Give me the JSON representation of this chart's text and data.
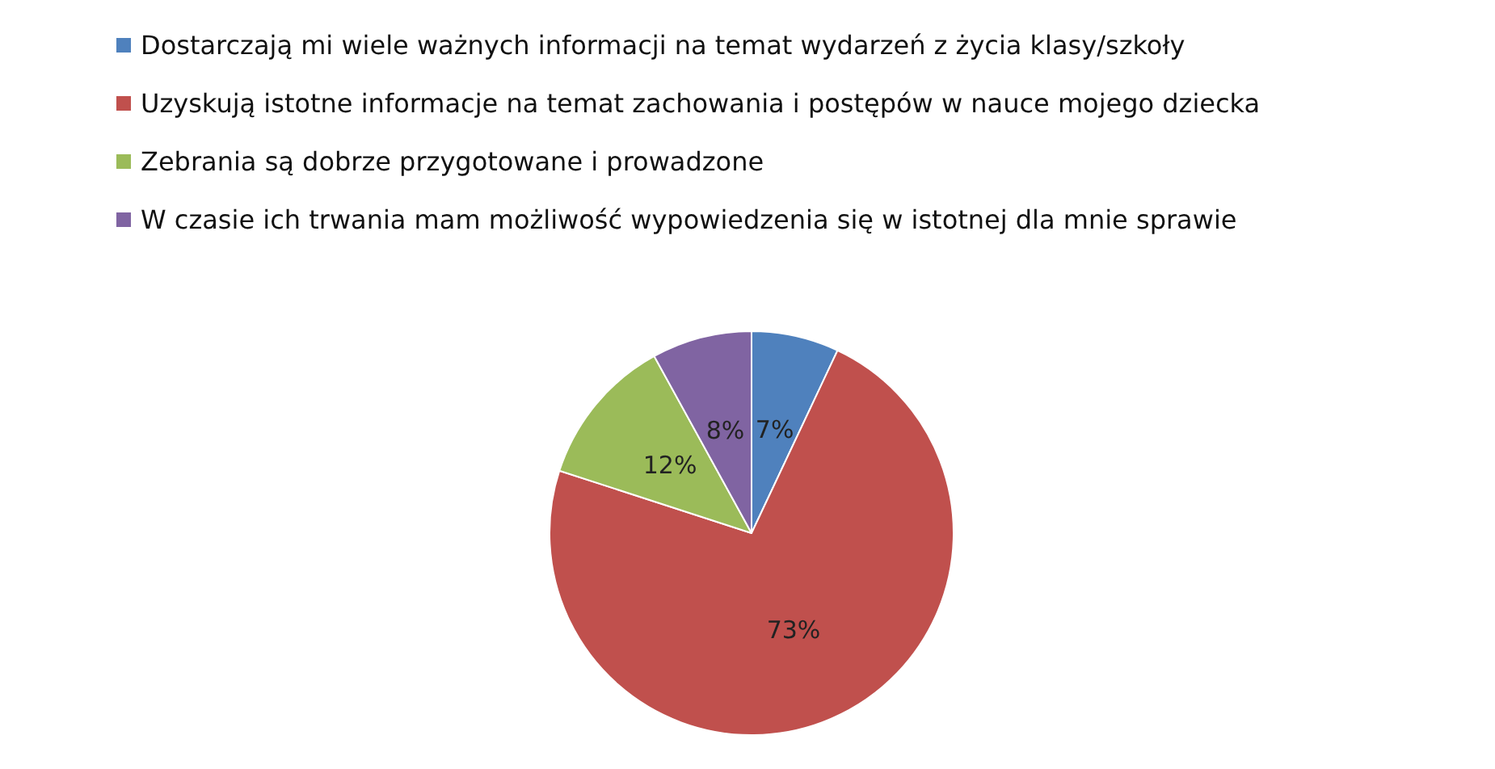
{
  "chart_data": {
    "type": "pie",
    "categories": [
      "Dostarczają mi wiele ważnych informacji na temat wydarzeń z życia klasy/szkoły",
      "Uzyskują istotne informacje na temat zachowania i postępów w nauce mojego dziecka",
      "Zebrania są dobrze przygotowane i prowadzone",
      "W czasie ich trwania mam możliwość wypowiedzenia się w istotnej dla mnie sprawie"
    ],
    "values": [
      7,
      73,
      12,
      8
    ],
    "colors": [
      "#4f81bd",
      "#c0504d",
      "#9bbb59",
      "#8064a2"
    ],
    "value_labels": [
      "7%",
      "73%",
      "12%",
      "8%"
    ],
    "legend": "top left"
  }
}
